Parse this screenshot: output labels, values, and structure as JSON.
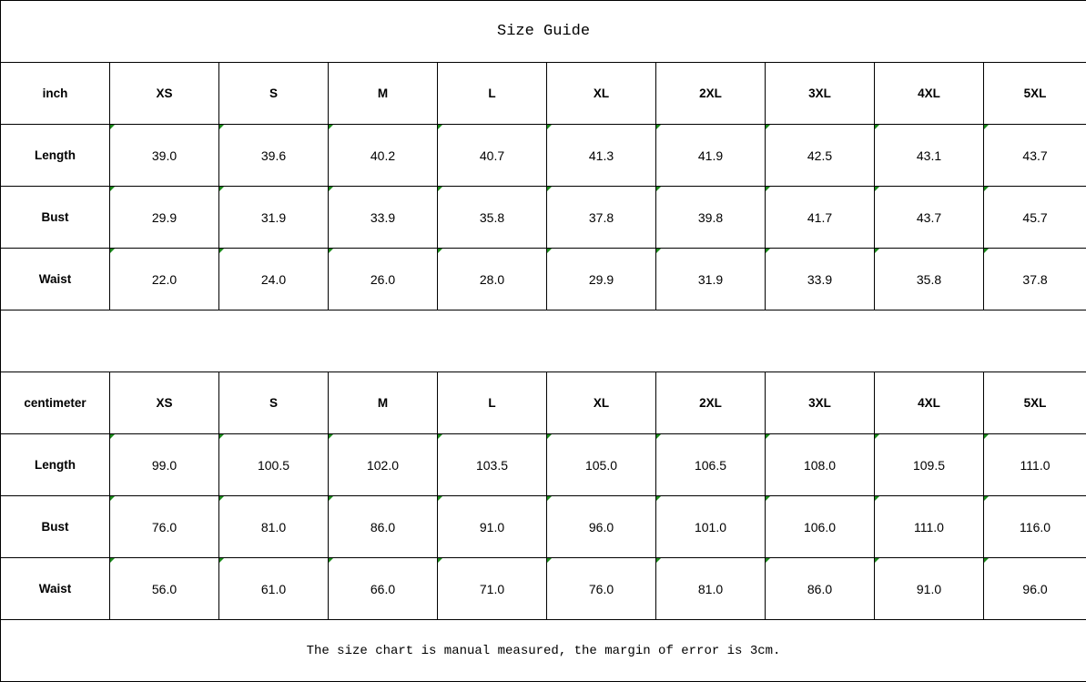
{
  "title": "Size Guide",
  "sizes": [
    "XS",
    "S",
    "M",
    "L",
    "XL",
    "2XL",
    "3XL",
    "4XL",
    "5XL"
  ],
  "tables": [
    {
      "unit": "inch",
      "rows": [
        {
          "label": "Length",
          "values": [
            "39.0",
            "39.6",
            "40.2",
            "40.7",
            "41.3",
            "41.9",
            "42.5",
            "43.1",
            "43.7"
          ]
        },
        {
          "label": "Bust",
          "values": [
            "29.9",
            "31.9",
            "33.9",
            "35.8",
            "37.8",
            "39.8",
            "41.7",
            "43.7",
            "45.7"
          ]
        },
        {
          "label": "Waist",
          "values": [
            "22.0",
            "24.0",
            "26.0",
            "28.0",
            "29.9",
            "31.9",
            "33.9",
            "35.8",
            "37.8"
          ]
        }
      ]
    },
    {
      "unit": "centimeter",
      "rows": [
        {
          "label": "Length",
          "values": [
            "99.0",
            "100.5",
            "102.0",
            "103.5",
            "105.0",
            "106.5",
            "108.0",
            "109.5",
            "111.0"
          ]
        },
        {
          "label": "Bust",
          "values": [
            "76.0",
            "81.0",
            "86.0",
            "91.0",
            "96.0",
            "101.0",
            "106.0",
            "111.0",
            "116.0"
          ]
        },
        {
          "label": "Waist",
          "values": [
            "56.0",
            "61.0",
            "66.0",
            "71.0",
            "76.0",
            "81.0",
            "86.0",
            "91.0",
            "96.0"
          ]
        }
      ]
    }
  ],
  "note": "The size chart is manual measured, the margin of error is 3cm.",
  "colors": {
    "cell_marker": "#1a8a1a",
    "border": "#000000"
  }
}
